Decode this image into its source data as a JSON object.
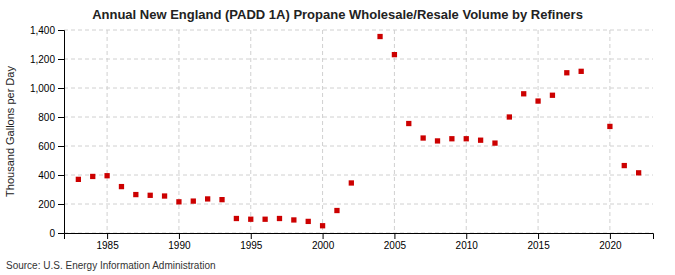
{
  "chart_data": {
    "type": "scatter",
    "title": "Annual New England (PADD 1A) Propane Wholesale/Resale Volume by Refiners",
    "y_label": "Thousand Gallons per Day",
    "annotations": [
      "Source: U.S. Energy Information Administration"
    ],
    "x": [
      1983,
      1984,
      1985,
      1986,
      1987,
      1988,
      1989,
      1990,
      1991,
      1992,
      1993,
      1994,
      1995,
      1996,
      1997,
      1998,
      1999,
      2000,
      2001,
      2002,
      2004,
      2005,
      2006,
      2007,
      2008,
      2009,
      2010,
      2011,
      2012,
      2013,
      2014,
      2015,
      2016,
      2017,
      2018,
      2020,
      2021,
      2022
    ],
    "values": [
      370,
      390,
      395,
      320,
      265,
      260,
      255,
      215,
      220,
      235,
      230,
      100,
      95,
      95,
      100,
      90,
      80,
      50,
      155,
      345,
      1355,
      1230,
      755,
      655,
      635,
      650,
      650,
      640,
      620,
      800,
      960,
      910,
      950,
      1105,
      1115,
      735,
      465,
      415
    ],
    "color": "#cc0000",
    "marker": "square",
    "grid": true,
    "xlim": [
      1982,
      2023
    ],
    "xticks": [
      1985,
      1990,
      1995,
      2000,
      2005,
      2010,
      2015,
      2020
    ],
    "ylim": [
      0,
      1400
    ],
    "yticks": [
      0,
      200,
      400,
      600,
      800,
      {
        "value": 1000,
        "label": "1,000"
      },
      {
        "value": 1200,
        "label": "1,200"
      },
      {
        "value": 1400,
        "label": "1,400"
      }
    ]
  }
}
